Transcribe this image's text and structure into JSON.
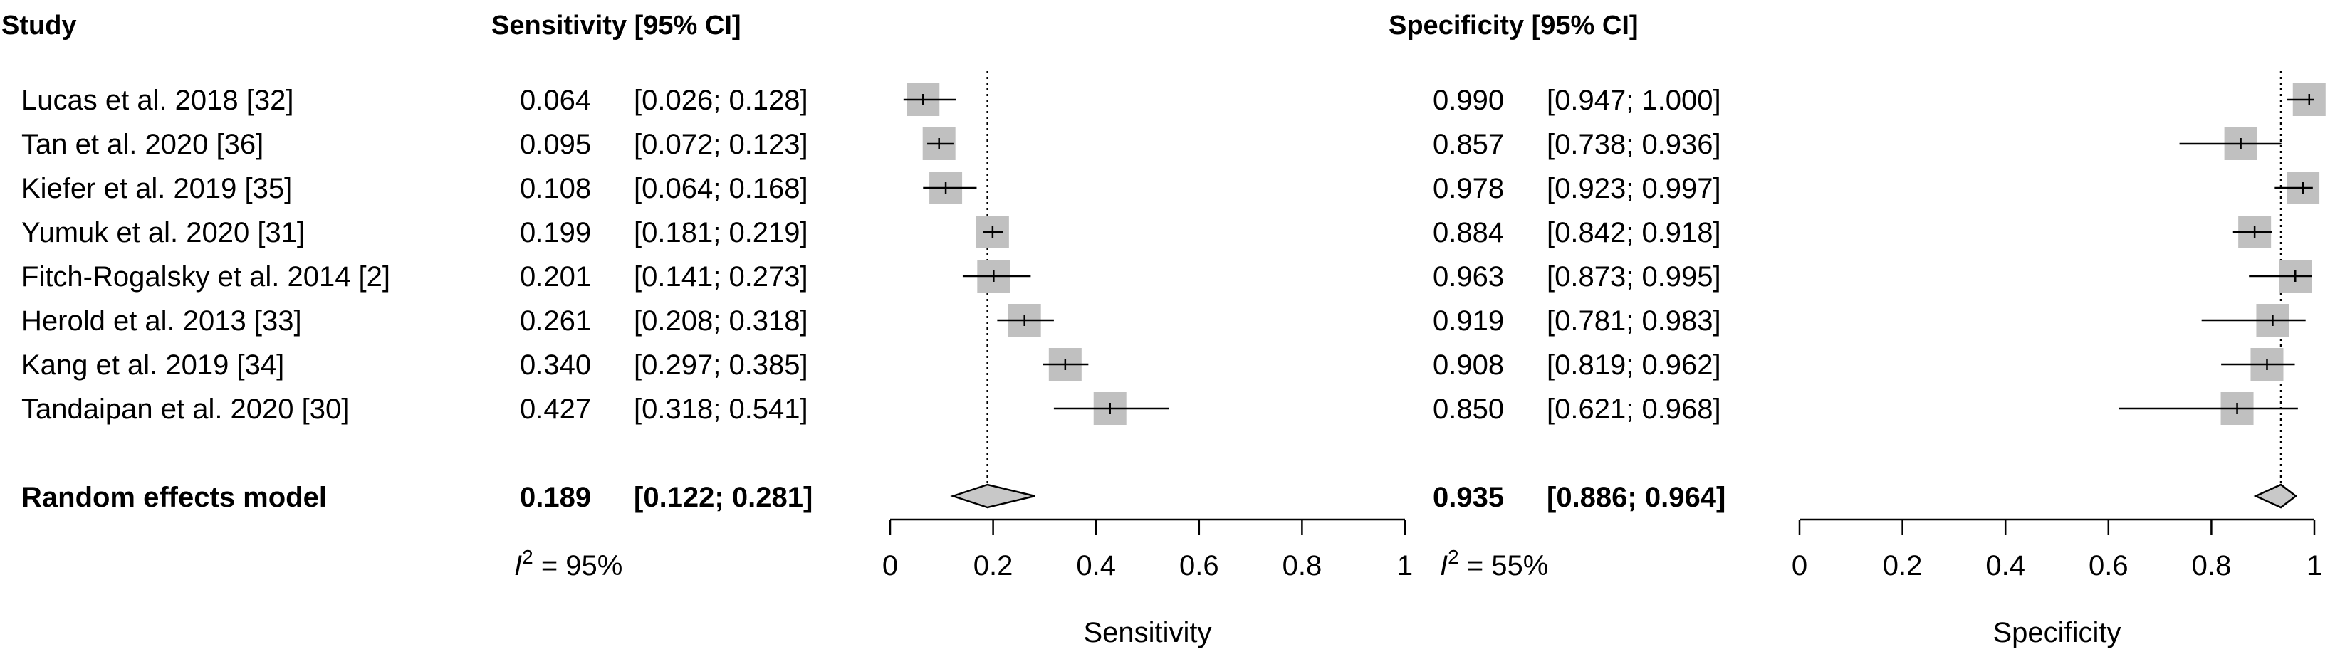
{
  "headers": {
    "study": "Study",
    "sensitivity": "Sensitivity [95% CI]",
    "specificity": "Specificity [95% CI]"
  },
  "studies": [
    {
      "name": "Lucas et al. 2018 [32]",
      "sens": {
        "est": "0.064",
        "ci": "[0.026; 0.128]",
        "v": 0.064,
        "lo": 0.026,
        "hi": 0.128,
        "w": 3
      },
      "spec": {
        "est": "0.990",
        "ci": "[0.947; 1.000]",
        "v": 0.99,
        "lo": 0.947,
        "hi": 1.0,
        "w": 3
      }
    },
    {
      "name": "Tan et al. 2020 [36]",
      "sens": {
        "est": "0.095",
        "ci": "[0.072; 0.123]",
        "v": 0.095,
        "lo": 0.072,
        "hi": 0.123,
        "w": 3
      },
      "spec": {
        "est": "0.857",
        "ci": "[0.738; 0.936]",
        "v": 0.857,
        "lo": 0.738,
        "hi": 0.936,
        "w": 3
      }
    },
    {
      "name": "Kiefer et al. 2019 [35]",
      "sens": {
        "est": "0.108",
        "ci": "[0.064; 0.168]",
        "v": 0.108,
        "lo": 0.064,
        "hi": 0.168,
        "w": 3
      },
      "spec": {
        "est": "0.978",
        "ci": "[0.923; 0.997]",
        "v": 0.978,
        "lo": 0.923,
        "hi": 0.997,
        "w": 3
      }
    },
    {
      "name": "Yumuk et al. 2020 [31]",
      "sens": {
        "est": "0.199",
        "ci": "[0.181; 0.219]",
        "v": 0.199,
        "lo": 0.181,
        "hi": 0.219,
        "w": 3
      },
      "spec": {
        "est": "0.884",
        "ci": "[0.842; 0.918]",
        "v": 0.884,
        "lo": 0.842,
        "hi": 0.918,
        "w": 3
      }
    },
    {
      "name": "Fitch-Rogalsky et al. 2014 [2]",
      "sens": {
        "est": "0.201",
        "ci": "[0.141; 0.273]",
        "v": 0.201,
        "lo": 0.141,
        "hi": 0.273,
        "w": 3
      },
      "spec": {
        "est": "0.963",
        "ci": "[0.873; 0.995]",
        "v": 0.963,
        "lo": 0.873,
        "hi": 0.995,
        "w": 3
      }
    },
    {
      "name": "Herold et al. 2013 [33]",
      "sens": {
        "est": "0.261",
        "ci": "[0.208; 0.318]",
        "v": 0.261,
        "lo": 0.208,
        "hi": 0.318,
        "w": 3
      },
      "spec": {
        "est": "0.919",
        "ci": "[0.781; 0.983]",
        "v": 0.919,
        "lo": 0.781,
        "hi": 0.983,
        "w": 3
      }
    },
    {
      "name": "Kang et al. 2019 [34]",
      "sens": {
        "est": "0.340",
        "ci": "[0.297; 0.385]",
        "v": 0.34,
        "lo": 0.297,
        "hi": 0.385,
        "w": 3
      },
      "spec": {
        "est": "0.908",
        "ci": "[0.819; 0.962]",
        "v": 0.908,
        "lo": 0.819,
        "hi": 0.962,
        "w": 3
      }
    },
    {
      "name": "Tandaipan et al. 2020 [30]",
      "sens": {
        "est": "0.427",
        "ci": "[0.318; 0.541]",
        "v": 0.427,
        "lo": 0.318,
        "hi": 0.541,
        "w": 3
      },
      "spec": {
        "est": "0.850",
        "ci": "[0.621; 0.968]",
        "v": 0.85,
        "lo": 0.621,
        "hi": 0.968,
        "w": 3
      }
    }
  ],
  "pooled": {
    "name": "Random effects model",
    "sens": {
      "est": "0.189",
      "ci": "[0.122; 0.281]",
      "v": 0.189,
      "lo": 0.122,
      "hi": 0.281
    },
    "spec": {
      "est": "0.935",
      "ci": "[0.886; 0.964]",
      "v": 0.935,
      "lo": 0.886,
      "hi": 0.964
    }
  },
  "heterogeneity": {
    "sens": {
      "prefix": "I",
      "sup": "2",
      "rest": " = 95%"
    },
    "spec": {
      "prefix": "I",
      "sup": "2",
      "rest": " = 55%"
    }
  },
  "chart_data": [
    {
      "type": "forest",
      "title": "Sensitivity",
      "xlabel": "Sensitivity",
      "xlim": [
        0,
        1
      ],
      "ticks": [
        0,
        0.2,
        0.4,
        0.6,
        0.8,
        1
      ],
      "tick_labels": [
        "0",
        "0.2",
        "0.4",
        "0.6",
        "0.8",
        "1"
      ],
      "reference_line": 0.189,
      "colors": {
        "box": "#c0c0c0",
        "line": "#000000",
        "diamond": "#c8c8c8"
      }
    },
    {
      "type": "forest",
      "title": "Specificity",
      "xlabel": "Specificity",
      "xlim": [
        0,
        1
      ],
      "ticks": [
        0,
        0.2,
        0.4,
        0.6,
        0.8,
        1
      ],
      "tick_labels": [
        "0",
        "0.2",
        "0.4",
        "0.6",
        "0.8",
        "1"
      ],
      "reference_line": 0.935,
      "colors": {
        "box": "#c0c0c0",
        "line": "#000000",
        "diamond": "#c8c8c8"
      }
    }
  ]
}
